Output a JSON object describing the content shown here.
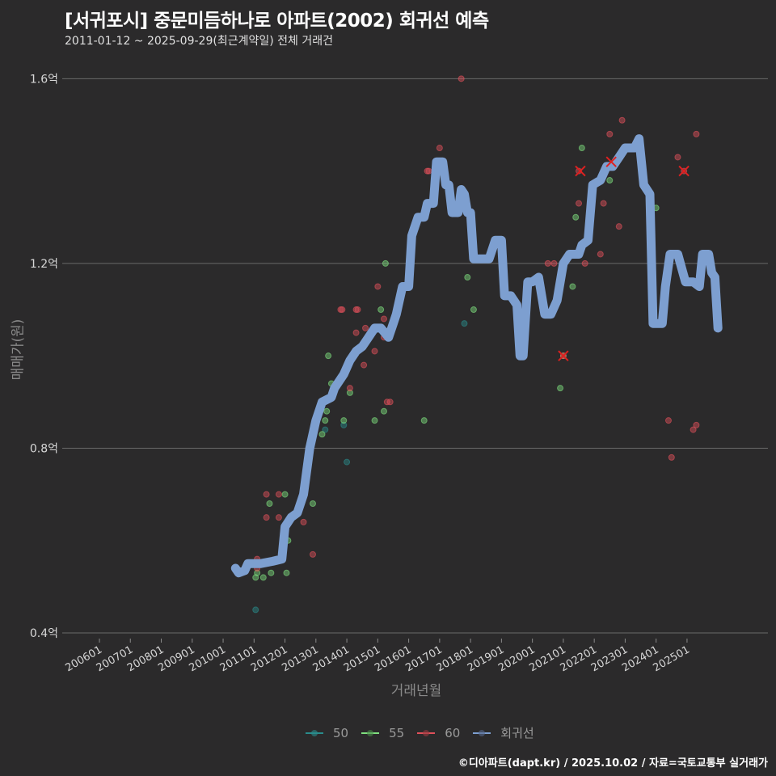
{
  "header": {
    "title": "[서귀포시] 중문미듬하나로 아파트(2002) 회귀선 예측",
    "subtitle": "2011-01-12 ~ 2025-09-29(최근계약일) 전체 거래건"
  },
  "axes": {
    "ylabel": "매매가(원)",
    "xlabel": "거래년월"
  },
  "legend": [
    {
      "label": "50",
      "color": "#2a8c8c"
    },
    {
      "label": "55",
      "color": "#7fe07f"
    },
    {
      "label": "60",
      "color": "#e0505a"
    },
    {
      "label": "회귀선",
      "color": "#7d9fd0"
    }
  ],
  "footer": "©디아파트(dapt.kr) / 2025.10.02 / 자료=국토교통부 실거래가",
  "chart_data": {
    "type": "scatter",
    "title": "[서귀포시] 중문미듬하나로 아파트(2002) 회귀선 예측",
    "subtitle": "2011-01-12 ~ 2025-09-29(최근계약일) 전체 거래건",
    "xlabel": "거래년월",
    "ylabel": "매매가(원)",
    "x_ticks": [
      "200601",
      "200701",
      "200801",
      "200901",
      "201001",
      "201101",
      "201201",
      "201301",
      "201401",
      "201501",
      "201601",
      "201701",
      "201801",
      "201901",
      "202001",
      "202101",
      "202201",
      "202301",
      "202401",
      "202501"
    ],
    "y_ticks": [
      "0.4억",
      "0.8억",
      "1.2억",
      "1.6억"
    ],
    "ylim": [
      0.4,
      1.65
    ],
    "grid": true,
    "legend_position": "bottom",
    "series": [
      {
        "name": "50",
        "color": "#2a8c8c",
        "points": [
          [
            2011.05,
            0.45
          ],
          [
            2013.3,
            0.84
          ],
          [
            2013.9,
            0.85
          ],
          [
            2014.0,
            0.77
          ],
          [
            2017.8,
            1.07
          ]
        ]
      },
      {
        "name": "55",
        "color": "#7fe07f",
        "points": [
          [
            2011.05,
            0.52
          ],
          [
            2011.1,
            0.53
          ],
          [
            2011.3,
            0.52
          ],
          [
            2011.55,
            0.53
          ],
          [
            2012.05,
            0.53
          ],
          [
            2012.1,
            0.6
          ],
          [
            2012.0,
            0.7
          ],
          [
            2011.5,
            0.68
          ],
          [
            2012.9,
            0.68
          ],
          [
            2013.2,
            0.83
          ],
          [
            2013.3,
            0.86
          ],
          [
            2013.35,
            0.88
          ],
          [
            2013.5,
            0.94
          ],
          [
            2013.4,
            1.0
          ],
          [
            2013.9,
            0.86
          ],
          [
            2014.1,
            0.92
          ],
          [
            2014.9,
            0.86
          ],
          [
            2015.2,
            0.88
          ],
          [
            2015.1,
            1.1
          ],
          [
            2015.25,
            1.2
          ],
          [
            2016.5,
            0.86
          ],
          [
            2017.9,
            1.17
          ],
          [
            2018.1,
            1.1
          ],
          [
            2019.6,
            1.0
          ],
          [
            2020.9,
            0.93
          ],
          [
            2021.0,
            1.0
          ],
          [
            2021.3,
            1.15
          ],
          [
            2021.4,
            1.3
          ],
          [
            2021.6,
            1.45
          ],
          [
            2022.5,
            1.38
          ],
          [
            2024.0,
            1.32
          ]
        ]
      },
      {
        "name": "60",
        "color": "#e0505a",
        "points": [
          [
            2011.05,
            0.55
          ],
          [
            2011.1,
            0.56
          ],
          [
            2011.1,
            0.54
          ],
          [
            2011.4,
            0.7
          ],
          [
            2011.4,
            0.65
          ],
          [
            2011.8,
            0.7
          ],
          [
            2011.8,
            0.65
          ],
          [
            2012.6,
            0.64
          ],
          [
            2012.9,
            0.57
          ],
          [
            2013.8,
            1.1
          ],
          [
            2013.85,
            1.1
          ],
          [
            2014.1,
            0.93
          ],
          [
            2014.3,
            1.1
          ],
          [
            2014.35,
            1.1
          ],
          [
            2014.3,
            1.05
          ],
          [
            2014.6,
            1.06
          ],
          [
            2014.55,
            0.98
          ],
          [
            2014.9,
            1.01
          ],
          [
            2015.0,
            1.15
          ],
          [
            2015.2,
            1.04
          ],
          [
            2015.2,
            1.08
          ],
          [
            2015.3,
            0.9
          ],
          [
            2015.4,
            0.9
          ],
          [
            2016.6,
            1.4
          ],
          [
            2016.65,
            1.4
          ],
          [
            2017.0,
            1.45
          ],
          [
            2017.7,
            1.6
          ],
          [
            2019.4,
            1.12
          ],
          [
            2020.5,
            1.2
          ],
          [
            2020.7,
            1.2
          ],
          [
            2020.9,
            1.15
          ],
          [
            2021.0,
            1.0
          ],
          [
            2021.5,
            1.33
          ],
          [
            2021.5,
            1.4
          ],
          [
            2021.7,
            1.2
          ],
          [
            2022.2,
            1.22
          ],
          [
            2022.3,
            1.33
          ],
          [
            2022.5,
            1.48
          ],
          [
            2022.8,
            1.28
          ],
          [
            2022.8,
            1.43
          ],
          [
            2022.9,
            1.51
          ],
          [
            2023.5,
            1.44
          ],
          [
            2024.4,
            0.86
          ],
          [
            2024.5,
            0.78
          ],
          [
            2024.7,
            1.43
          ],
          [
            2024.9,
            1.4
          ],
          [
            2025.2,
            0.84
          ],
          [
            2025.3,
            0.85
          ],
          [
            2025.3,
            1.48
          ]
        ]
      }
    ],
    "regression_line": {
      "name": "회귀선",
      "color": "#7d9fd0",
      "points": [
        [
          2010.4,
          0.54
        ],
        [
          2010.5,
          0.53
        ],
        [
          2010.7,
          0.535
        ],
        [
          2010.8,
          0.55
        ],
        [
          2011.2,
          0.55
        ],
        [
          2011.6,
          0.555
        ],
        [
          2011.9,
          0.56
        ],
        [
          2012.0,
          0.63
        ],
        [
          2012.2,
          0.65
        ],
        [
          2012.4,
          0.66
        ],
        [
          2012.6,
          0.7
        ],
        [
          2012.8,
          0.8
        ],
        [
          2013.0,
          0.86
        ],
        [
          2013.2,
          0.9
        ],
        [
          2013.5,
          0.91
        ],
        [
          2013.6,
          0.93
        ],
        [
          2013.9,
          0.96
        ],
        [
          2014.1,
          0.99
        ],
        [
          2014.3,
          1.01
        ],
        [
          2014.5,
          1.02
        ],
        [
          2014.7,
          1.04
        ],
        [
          2014.9,
          1.06
        ],
        [
          2015.1,
          1.06
        ],
        [
          2015.35,
          1.04
        ],
        [
          2015.5,
          1.07
        ],
        [
          2015.6,
          1.09
        ],
        [
          2015.8,
          1.15
        ],
        [
          2016.0,
          1.15
        ],
        [
          2016.1,
          1.26
        ],
        [
          2016.3,
          1.3
        ],
        [
          2016.5,
          1.3
        ],
        [
          2016.6,
          1.33
        ],
        [
          2016.8,
          1.33
        ],
        [
          2016.9,
          1.42
        ],
        [
          2017.1,
          1.42
        ],
        [
          2017.2,
          1.37
        ],
        [
          2017.3,
          1.37
        ],
        [
          2017.4,
          1.31
        ],
        [
          2017.6,
          1.31
        ],
        [
          2017.7,
          1.36
        ],
        [
          2017.8,
          1.35
        ],
        [
          2017.9,
          1.31
        ],
        [
          2018.0,
          1.31
        ],
        [
          2018.1,
          1.21
        ],
        [
          2018.6,
          1.21
        ],
        [
          2018.8,
          1.25
        ],
        [
          2019.0,
          1.25
        ],
        [
          2019.1,
          1.13
        ],
        [
          2019.3,
          1.13
        ],
        [
          2019.5,
          1.11
        ],
        [
          2019.6,
          1.0
        ],
        [
          2019.7,
          1.0
        ],
        [
          2019.85,
          1.16
        ],
        [
          2020.0,
          1.16
        ],
        [
          2020.2,
          1.17
        ],
        [
          2020.4,
          1.09
        ],
        [
          2020.6,
          1.09
        ],
        [
          2020.8,
          1.12
        ],
        [
          2021.0,
          1.2
        ],
        [
          2021.2,
          1.22
        ],
        [
          2021.5,
          1.22
        ],
        [
          2021.6,
          1.24
        ],
        [
          2021.8,
          1.25
        ],
        [
          2021.95,
          1.37
        ],
        [
          2022.2,
          1.38
        ],
        [
          2022.4,
          1.41
        ],
        [
          2022.6,
          1.41
        ],
        [
          2022.8,
          1.43
        ],
        [
          2023.0,
          1.45
        ],
        [
          2023.3,
          1.45
        ],
        [
          2023.45,
          1.47
        ],
        [
          2023.6,
          1.37
        ],
        [
          2023.8,
          1.35
        ],
        [
          2023.9,
          1.07
        ],
        [
          2024.2,
          1.07
        ],
        [
          2024.3,
          1.15
        ],
        [
          2024.45,
          1.22
        ],
        [
          2024.7,
          1.22
        ],
        [
          2024.95,
          1.16
        ],
        [
          2025.2,
          1.16
        ],
        [
          2025.4,
          1.15
        ],
        [
          2025.5,
          1.22
        ],
        [
          2025.7,
          1.22
        ],
        [
          2025.8,
          1.18
        ],
        [
          2025.9,
          1.17
        ],
        [
          2026.0,
          1.06
        ]
      ]
    }
  }
}
